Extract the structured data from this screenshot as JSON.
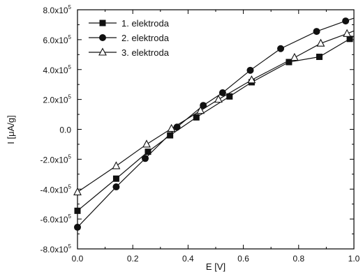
{
  "chart_data": {
    "type": "line",
    "xlabel": "E  [V]",
    "ylabel_prefix": "I [",
    "ylabel_mu": "μ",
    "ylabel_suffix": "A/g]",
    "xlim": [
      0.0,
      1.0
    ],
    "ylim": [
      -800000,
      800000
    ],
    "x_ticks": [
      {
        "value": 0.0,
        "label": "0.0"
      },
      {
        "value": 0.2,
        "label": "0.2"
      },
      {
        "value": 0.4,
        "label": "0.4"
      },
      {
        "value": 0.6,
        "label": "0.6"
      },
      {
        "value": 0.8,
        "label": "0.8"
      },
      {
        "value": 1.0,
        "label": "1.0"
      }
    ],
    "y_ticks": [
      {
        "value": -800000,
        "mantissa": "-8.0x10",
        "exp": "5"
      },
      {
        "value": -600000,
        "mantissa": "-6.0x10",
        "exp": "5"
      },
      {
        "value": -400000,
        "mantissa": "-4.0x10",
        "exp": "5"
      },
      {
        "value": -200000,
        "mantissa": "-2.0x10",
        "exp": "5"
      },
      {
        "value": 0,
        "mantissa": "0.0",
        "exp": ""
      },
      {
        "value": 200000,
        "mantissa": "2.0x10",
        "exp": "5"
      },
      {
        "value": 400000,
        "mantissa": "4.0x10",
        "exp": "5"
      },
      {
        "value": 600000,
        "mantissa": "6.0x10",
        "exp": "5"
      },
      {
        "value": 800000,
        "mantissa": "8.0x10",
        "exp": "5"
      }
    ],
    "legend_position": "top-left",
    "grid": false,
    "series": [
      {
        "name": "1. elektroda",
        "marker": "square",
        "x": [
          0.0,
          0.14,
          0.255,
          0.335,
          0.43,
          0.55,
          0.63,
          0.765,
          0.875,
          0.985
        ],
        "y": [
          -545000,
          -330000,
          -150000,
          -40000,
          80000,
          220000,
          315000,
          450000,
          485000,
          605000
        ]
      },
      {
        "name": "2. elektroda",
        "marker": "circle",
        "x": [
          0.0,
          0.14,
          0.245,
          0.36,
          0.455,
          0.525,
          0.625,
          0.735,
          0.865,
          0.97
        ],
        "y": [
          -655000,
          -385000,
          -195000,
          15000,
          160000,
          245000,
          395000,
          540000,
          655000,
          725000
        ]
      },
      {
        "name": "3. elektroda",
        "marker": "triangle-open",
        "x": [
          0.0,
          0.14,
          0.25,
          0.34,
          0.445,
          0.51,
          0.63,
          0.785,
          0.88,
          0.975
        ],
        "y": [
          -420000,
          -245000,
          -100000,
          5000,
          125000,
          200000,
          330000,
          480000,
          575000,
          640000
        ]
      }
    ]
  }
}
